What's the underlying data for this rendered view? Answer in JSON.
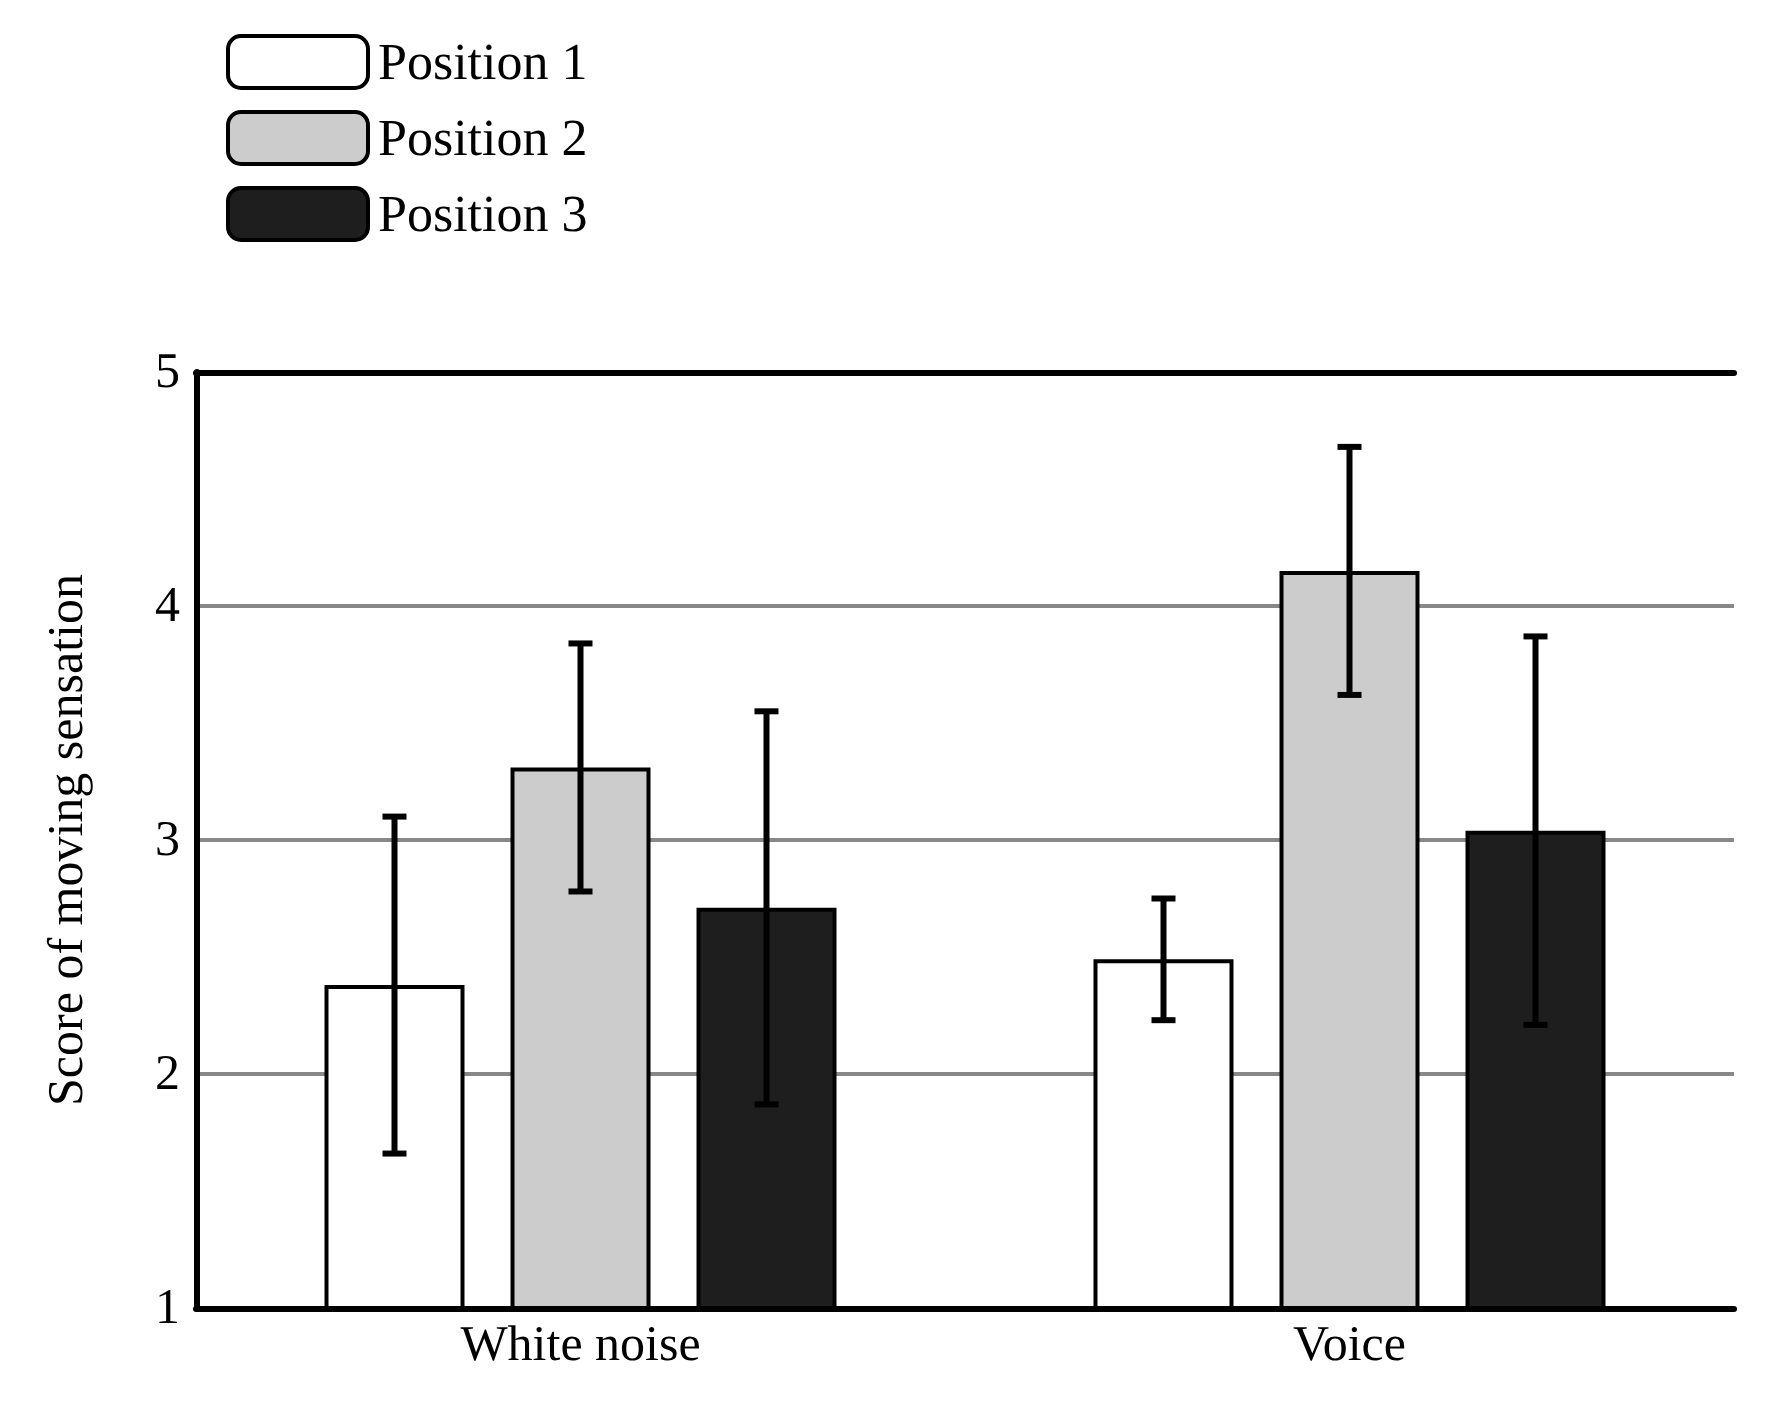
{
  "chart_data": {
    "type": "bar",
    "ylabel": "Score of moving sensation",
    "categories": [
      "White noise",
      "Voice"
    ],
    "series": [
      {
        "name": "Position 1",
        "color": "#ffffff",
        "values": [
          2.38,
          2.49
        ],
        "errors": [
          0.72,
          0.26
        ]
      },
      {
        "name": "Position 2",
        "color": "#cccccc",
        "values": [
          3.31,
          4.15
        ],
        "errors": [
          0.53,
          0.53
        ]
      },
      {
        "name": "Position 3",
        "color": "#1e1e1e",
        "values": [
          2.71,
          3.04
        ],
        "errors": [
          0.84,
          0.83
        ]
      }
    ],
    "ylim": [
      1,
      5
    ],
    "yticks": [
      1,
      2,
      3,
      4,
      5
    ],
    "grid": "y",
    "legend": "top left"
  }
}
